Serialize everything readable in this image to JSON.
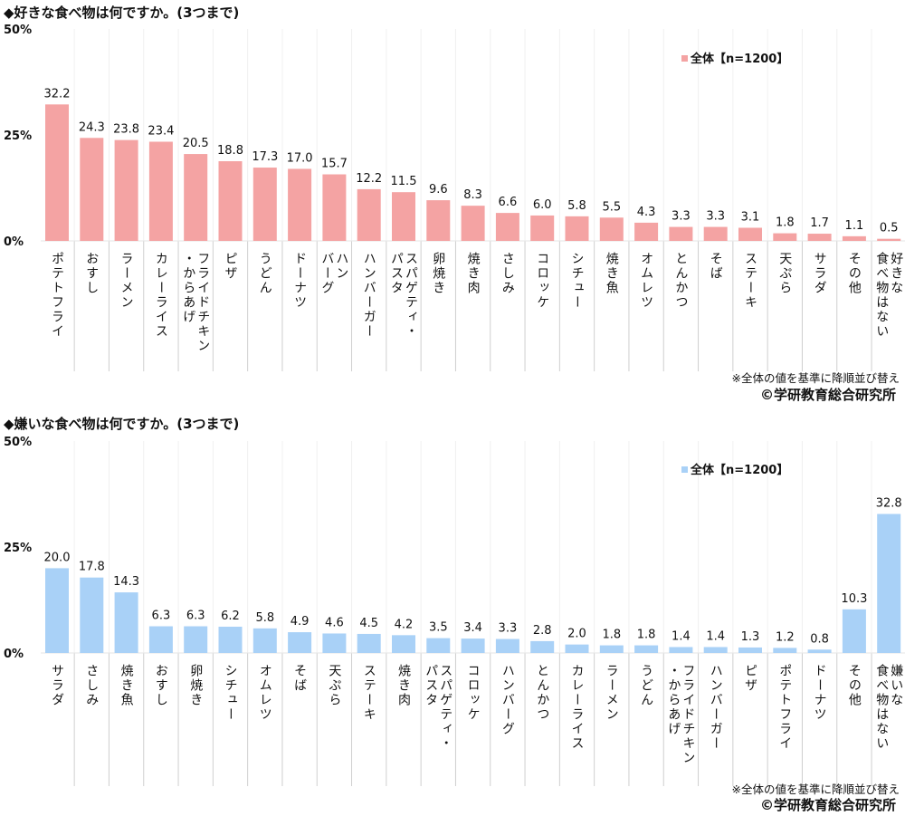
{
  "chart_data": [
    {
      "type": "bar",
      "title": "◆好きな食べ物は何ですか。(3つまで)",
      "ylim": [
        0,
        50
      ],
      "yticks": [
        "0%",
        "25%",
        "50%"
      ],
      "legend": "全体【n=1200】",
      "legend_placement": "top-right",
      "color": "#f4a3a3",
      "categories": [
        "ポテトフライ",
        "おすし",
        "ラーメン",
        "カレーライス",
        "フライドチキン\n・からあげ",
        "ピザ",
        "うどん",
        "ドーナツ",
        "ハン\nバーグ",
        "ハンバーガー",
        "スパゲティ・\nパスタ",
        "卵焼き",
        "焼き肉",
        "さしみ",
        "コロッケ",
        "シチュー",
        "焼き魚",
        "オムレツ",
        "とんかつ",
        "そば",
        "ステーキ",
        "天ぷら",
        "サラダ",
        "その他",
        "好きな\n食べ物はない"
      ],
      "values": [
        32.2,
        24.3,
        23.8,
        23.4,
        20.5,
        18.8,
        17.3,
        17.0,
        15.7,
        12.2,
        11.5,
        9.6,
        8.3,
        6.6,
        6.0,
        5.8,
        5.5,
        4.3,
        3.3,
        3.3,
        3.1,
        1.8,
        1.7,
        1.1,
        0.5
      ],
      "value_labels": [
        "32.2",
        "24.3",
        "23.8",
        "23.4",
        "20.5",
        "18.8",
        "17.3",
        "17.0",
        "15.7",
        "12.2",
        "11.5",
        "9.6",
        "8.3",
        "6.6",
        "6.0",
        "5.8",
        "5.5",
        "4.3",
        "3.3",
        "3.3",
        "3.1",
        "1.8",
        "1.7",
        "1.1",
        "0.5"
      ],
      "note": "※全体の値を基準に降順並び替え",
      "credit": "©学研教育総合研究所"
    },
    {
      "type": "bar",
      "title": "◆嫌いな食べ物は何ですか。(3つまで)",
      "ylim": [
        0,
        50
      ],
      "yticks": [
        "0%",
        "25%",
        "50%"
      ],
      "legend": "全体【n=1200】",
      "legend_placement": "top-right",
      "color": "#a9d1f7",
      "categories": [
        "サラダ",
        "さしみ",
        "焼き魚",
        "おすし",
        "卵焼き",
        "シチュー",
        "オムレツ",
        "そば",
        "天ぷら",
        "ステーキ",
        "焼き肉",
        "スパゲティ・\nパスタ",
        "コロッケ",
        "ハンバーグ",
        "とんかつ",
        "カレーライス",
        "ラーメン",
        "うどん",
        "フライドチキン\n・からあげ",
        "ハンバーガー",
        "ピザ",
        "ポテトフライ",
        "ドーナツ",
        "その他",
        "嫌いな\n食べ物はない"
      ],
      "values": [
        20.0,
        17.8,
        14.3,
        6.3,
        6.3,
        6.2,
        5.8,
        4.9,
        4.6,
        4.5,
        4.2,
        3.5,
        3.4,
        3.3,
        2.8,
        2.0,
        1.8,
        1.8,
        1.4,
        1.4,
        1.3,
        1.2,
        0.8,
        10.3,
        32.8
      ],
      "value_labels": [
        "20.0",
        "17.8",
        "14.3",
        "6.3",
        "6.3",
        "6.2",
        "5.8",
        "4.9",
        "4.6",
        "4.5",
        "4.2",
        "3.5",
        "3.4",
        "3.3",
        "2.8",
        "2.0",
        "1.8",
        "1.8",
        "1.4",
        "1.4",
        "1.3",
        "1.2",
        "0.8",
        "10.3",
        "32.8"
      ],
      "note": "※全体の値を基準に降順並び替え",
      "credit": "©学研教育総合研究所"
    }
  ]
}
